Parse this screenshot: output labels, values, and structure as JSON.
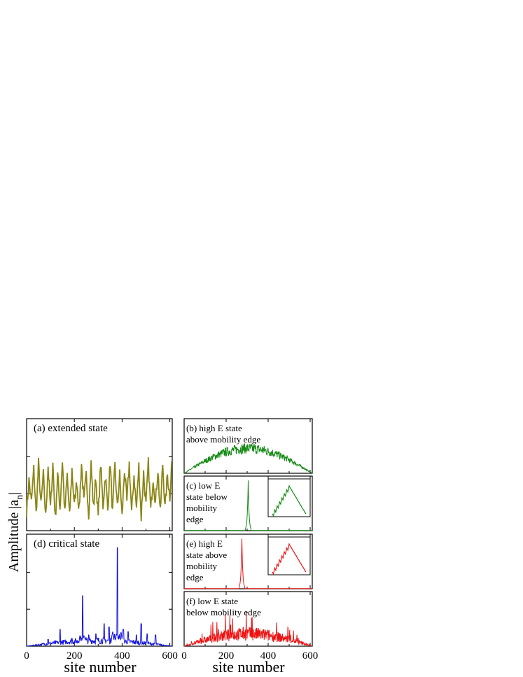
{
  "figure": {
    "ylabel_main": "Amplitude |a",
    "ylabel_sub": "n",
    "ylabel_close": "|",
    "xlabel_left": "site number",
    "xlabel_right": "site number",
    "colors": {
      "olive": "#8b8514",
      "blue": "#1010e0",
      "green": "#138a13",
      "red": "#ee1111"
    }
  },
  "chart_data": [
    {
      "id": "a",
      "type": "line",
      "label": "(a) extended state",
      "color": "#8b8514",
      "xlim": [
        0,
        610
      ],
      "ylim": [
        0,
        1
      ],
      "xticks": [
        0,
        200,
        400,
        600
      ],
      "xtick_labels_shown": false,
      "profile": "extended",
      "x": [
        0,
        10,
        20,
        30,
        40,
        50,
        60,
        70,
        80,
        90,
        100,
        110,
        120,
        130,
        140,
        150,
        160,
        170,
        180,
        190,
        200,
        210,
        220,
        230,
        240,
        250,
        260,
        270,
        280,
        290,
        300,
        310,
        320,
        330,
        340,
        350,
        360,
        370,
        380,
        390,
        400,
        410,
        420,
        430,
        440,
        450,
        460,
        470,
        480,
        490,
        500,
        510,
        520,
        530,
        540,
        550,
        560,
        570,
        580,
        590,
        600,
        610
      ],
      "y": [
        0.18,
        0.45,
        0.25,
        0.55,
        0.15,
        0.6,
        0.22,
        0.5,
        0.12,
        0.58,
        0.2,
        0.6,
        0.1,
        0.5,
        0.2,
        0.63,
        0.15,
        0.5,
        0.12,
        0.55,
        0.22,
        0.45,
        0.18,
        0.6,
        0.25,
        0.5,
        0.15,
        0.6,
        0.2,
        0.48,
        0.12,
        0.6,
        0.22,
        0.5,
        0.18,
        0.62,
        0.15,
        0.58,
        0.2,
        0.5,
        0.12,
        0.55,
        0.25,
        0.6,
        0.15,
        0.5,
        0.2,
        0.58,
        0.12,
        0.52,
        0.22,
        0.6,
        0.18,
        0.48,
        0.25,
        0.55,
        0.15,
        0.6,
        0.2,
        0.5,
        0.3,
        0.7
      ]
    },
    {
      "id": "b",
      "type": "line",
      "label": [
        "(b) high E state",
        "above mobility edge"
      ],
      "color": "#138a13",
      "xlim": [
        0,
        610
      ],
      "ylim": [
        0,
        1
      ],
      "profile": "dome"
    },
    {
      "id": "c",
      "type": "line",
      "label": [
        "(c) low E",
        "state below",
        "mobility",
        "edge"
      ],
      "color": "#138a13",
      "xlim": [
        0,
        610
      ],
      "ylim": [
        0,
        1
      ],
      "profile": "peak",
      "peak_x": 305,
      "inset": true
    },
    {
      "id": "d",
      "type": "line",
      "label": "(d) critical state",
      "color": "#1010e0",
      "xlim": [
        0,
        610
      ],
      "ylim": [
        0,
        1
      ],
      "xticks": [
        0,
        200,
        400,
        600
      ],
      "xtick_labels": [
        "0",
        "200",
        "400",
        "600"
      ],
      "profile": "critical",
      "peaks": [
        [
          90,
          0.06
        ],
        [
          140,
          0.15
        ],
        [
          190,
          0.07
        ],
        [
          235,
          0.45
        ],
        [
          260,
          0.1
        ],
        [
          290,
          0.11
        ],
        [
          325,
          0.2
        ],
        [
          345,
          0.17
        ],
        [
          380,
          0.88
        ],
        [
          405,
          0.15
        ],
        [
          425,
          0.13
        ],
        [
          460,
          0.1
        ],
        [
          480,
          0.2
        ],
        [
          505,
          0.11
        ],
        [
          540,
          0.1
        ]
      ]
    },
    {
      "id": "e",
      "type": "line",
      "label": [
        "(e) high E",
        "state above",
        "mobility",
        "edge"
      ],
      "color": "#ee1111",
      "xlim": [
        0,
        610
      ],
      "ylim": [
        0,
        1
      ],
      "profile": "peak",
      "peak_x": 275,
      "inset": true
    },
    {
      "id": "f",
      "type": "line",
      "label": [
        "(f) low E state",
        "below mobility edge"
      ],
      "color": "#ee1111",
      "xlim": [
        0,
        610
      ],
      "ylim": [
        0,
        1
      ],
      "xticks": [
        0,
        200,
        400,
        600
      ],
      "xtick_labels": [
        "0",
        "200",
        "400",
        "600"
      ],
      "profile": "noisy-dome"
    }
  ]
}
